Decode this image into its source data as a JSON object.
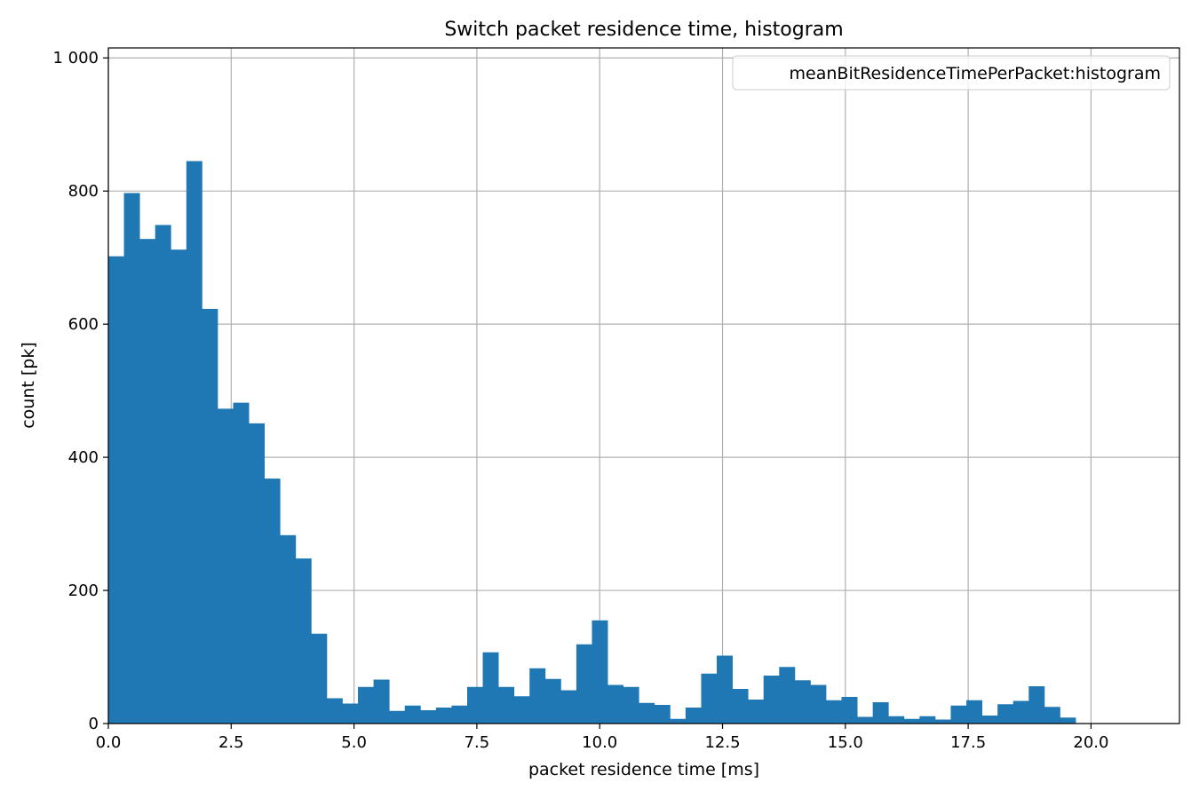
{
  "chart_data": {
    "type": "bar",
    "title": "Switch packet residence time, histogram",
    "xlabel": "packet residence time [ms]",
    "ylabel": "count [pk]",
    "xlim": [
      0,
      21.8
    ],
    "ylim": [
      0,
      1015
    ],
    "xticks": [
      0,
      2.5,
      5,
      7.5,
      10,
      12.5,
      15,
      17.5,
      20
    ],
    "xtick_labels": [
      "0.0",
      "2.5",
      "5.0",
      "7.5",
      "10.0",
      "12.5",
      "15.0",
      "17.5",
      "20.0"
    ],
    "yticks": [
      0,
      200,
      400,
      600,
      800,
      1000
    ],
    "ytick_labels": [
      "0",
      "200",
      "400",
      "600",
      "800",
      "1 000"
    ],
    "grid": true,
    "legend_position": "top-right",
    "bar_color": "#1f77b4",
    "bin_width": 0.3175,
    "series": [
      {
        "name": "meanBitResidenceTimePerPacket:histogram",
        "bin_start": [
          0,
          0.3175,
          0.635,
          0.9525,
          1.27,
          1.5875,
          1.905,
          2.2225,
          2.54,
          2.8575,
          3.175,
          3.4925,
          3.81,
          4.1275,
          4.445,
          4.7625,
          5.08,
          5.3975,
          5.715,
          6.0325,
          6.35,
          6.6675,
          6.985,
          7.3025,
          7.62,
          7.9375,
          8.255,
          8.5725,
          8.89,
          9.2075,
          9.525,
          9.8425,
          10.16,
          10.4775,
          10.795,
          11.1125,
          11.43,
          11.7475,
          12.065,
          12.3825,
          12.7,
          13.0175,
          13.335,
          13.6525,
          13.97,
          14.2875,
          14.605,
          14.9225,
          15.24,
          15.5575,
          15.875,
          16.1925,
          16.51,
          16.8275,
          17.145,
          17.4625,
          17.78,
          18.0975,
          18.415,
          18.7325,
          19.05,
          19.3675
        ],
        "values": [
          702,
          797,
          728,
          749,
          712,
          845,
          623,
          473,
          482,
          451,
          368,
          283,
          248,
          135,
          38,
          30,
          55,
          66,
          19,
          27,
          20,
          24,
          27,
          55,
          107,
          55,
          41,
          83,
          67,
          50,
          119,
          155,
          58,
          55,
          31,
          28,
          7,
          24,
          75,
          102,
          52,
          36,
          72,
          85,
          65,
          58,
          35,
          40,
          10,
          32,
          11,
          7,
          11,
          6,
          27,
          35,
          12,
          29,
          34,
          56,
          25,
          9
        ]
      }
    ]
  }
}
